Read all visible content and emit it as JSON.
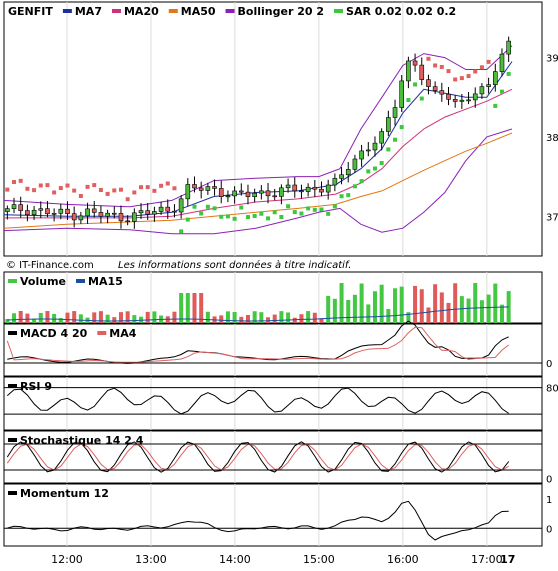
{
  "chart_data": {
    "type": "line",
    "symbol": "GENFIT",
    "watermark": "© IT-Finance.com",
    "disclaimer": "Les informations sont données à titre indicatif.",
    "x_ticks": [
      "12:00",
      "13:00",
      "14:00",
      "15:00",
      "16:00",
      "17:00",
      "17"
    ],
    "x_range": [
      11.25,
      17.3
    ],
    "colors": {
      "up": "#4cbc3c",
      "down": "#e06060",
      "ma7": "#1a2fa0",
      "ma20": "#d0307a",
      "ma50": "#e07818",
      "bollinger": "#8a20b8",
      "sar": "#3cc83c",
      "sar_down": "#e06060",
      "volume_up": "#44c844",
      "volume_down": "#e05a5a",
      "ma15": "#1a4fa0",
      "macd": "#000000",
      "macd_ma": "#e06060",
      "stoch_signal": "#e06060"
    },
    "panels": [
      {
        "id": "price",
        "legend": [
          {
            "label": "GENFIT",
            "color": "#000000"
          },
          {
            "label": "MA7",
            "color": "#1a2fa0"
          },
          {
            "label": "MA20",
            "color": "#d0307a"
          },
          {
            "label": "MA50",
            "color": "#e07818"
          },
          {
            "label": "Bollinger 20 2",
            "color": "#8a20b8"
          },
          {
            "label": "SAR 0.02 0.02 0.2",
            "color": "#3cc83c"
          }
        ],
        "y_ticks": [
          "39",
          "38",
          "37"
        ],
        "y_range": [
          36.5,
          39.7
        ]
      },
      {
        "id": "volume",
        "legend": [
          {
            "label": "Volume",
            "color": "#44c844"
          },
          {
            "label": "MA15",
            "color": "#1a4fa0"
          }
        ],
        "y_ticks": []
      },
      {
        "id": "macd",
        "legend": [
          {
            "label": "MACD 4 20",
            "color": "#000000"
          },
          {
            "label": "MA4",
            "color": "#e06060"
          }
        ],
        "y_ticks": [
          "0"
        ]
      },
      {
        "id": "rsi",
        "legend": [
          {
            "label": "RSI 9",
            "color": "#000000"
          }
        ],
        "y_ticks": [
          "80"
        ]
      },
      {
        "id": "stoch",
        "legend": [
          {
            "label": "Stochastique 14 2 4",
            "color": "#000000"
          }
        ],
        "y_ticks": [
          "0"
        ]
      },
      {
        "id": "momentum",
        "legend": [
          {
            "label": "Momentum 12",
            "color": "#000000"
          }
        ],
        "y_ticks": [
          "1",
          "0"
        ]
      }
    ],
    "series_segments": {
      "price_path": [
        [
          11.25,
          37.06
        ],
        [
          11.5,
          37.1
        ],
        [
          11.75,
          37.05
        ],
        [
          12.0,
          37.02
        ],
        [
          12.25,
          37.05
        ],
        [
          12.5,
          37.0
        ],
        [
          12.75,
          37.0
        ],
        [
          13.0,
          37.05
        ],
        [
          13.25,
          37.1
        ],
        [
          13.35,
          37.2
        ],
        [
          13.45,
          37.35
        ],
        [
          13.75,
          37.35
        ],
        [
          14.0,
          37.25
        ],
        [
          14.25,
          37.3
        ],
        [
          14.5,
          37.3
        ],
        [
          14.75,
          37.35
        ],
        [
          15.0,
          37.35
        ],
        [
          15.2,
          37.4
        ],
        [
          15.35,
          37.65
        ],
        [
          15.5,
          37.8
        ],
        [
          15.75,
          38.0
        ],
        [
          15.9,
          38.4
        ],
        [
          16.0,
          38.8
        ],
        [
          16.1,
          39.0
        ],
        [
          16.2,
          38.8
        ],
        [
          16.35,
          38.5
        ],
        [
          16.5,
          38.6
        ],
        [
          16.65,
          38.4
        ],
        [
          16.8,
          38.5
        ],
        [
          17.0,
          38.6
        ],
        [
          17.1,
          38.9
        ],
        [
          17.2,
          39.1
        ],
        [
          17.3,
          39.2
        ]
      ],
      "ma7": [
        [
          11.25,
          37.02
        ],
        [
          12.0,
          37.0
        ],
        [
          12.75,
          37.0
        ],
        [
          13.25,
          37.05
        ],
        [
          13.75,
          37.25
        ],
        [
          14.25,
          37.3
        ],
        [
          14.75,
          37.32
        ],
        [
          15.2,
          37.4
        ],
        [
          15.5,
          37.6
        ],
        [
          15.75,
          37.85
        ],
        [
          16.0,
          38.3
        ],
        [
          16.25,
          38.6
        ],
        [
          16.5,
          38.55
        ],
        [
          16.75,
          38.5
        ],
        [
          17.0,
          38.5
        ],
        [
          17.2,
          38.8
        ],
        [
          17.3,
          38.95
        ]
      ],
      "ma20": [
        [
          11.25,
          36.98
        ],
        [
          12.0,
          36.98
        ],
        [
          12.75,
          36.98
        ],
        [
          13.25,
          37.0
        ],
        [
          13.75,
          37.1
        ],
        [
          14.25,
          37.18
        ],
        [
          14.75,
          37.22
        ],
        [
          15.2,
          37.28
        ],
        [
          15.5,
          37.42
        ],
        [
          15.75,
          37.6
        ],
        [
          16.0,
          37.88
        ],
        [
          16.25,
          38.1
        ],
        [
          16.5,
          38.25
        ],
        [
          16.75,
          38.35
        ],
        [
          17.0,
          38.45
        ],
        [
          17.3,
          38.6
        ]
      ],
      "ma50": [
        [
          11.25,
          36.85
        ],
        [
          12.0,
          36.9
        ],
        [
          12.75,
          36.93
        ],
        [
          13.25,
          36.95
        ],
        [
          13.75,
          37.0
        ],
        [
          14.25,
          37.05
        ],
        [
          14.75,
          37.1
        ],
        [
          15.2,
          37.15
        ],
        [
          15.5,
          37.25
        ],
        [
          15.75,
          37.32
        ],
        [
          16.0,
          37.45
        ],
        [
          16.25,
          37.58
        ],
        [
          16.5,
          37.7
        ],
        [
          16.75,
          37.82
        ],
        [
          17.0,
          37.92
        ],
        [
          17.3,
          38.05
        ]
      ],
      "boll_upper": [
        [
          11.25,
          37.2
        ],
        [
          12.0,
          37.15
        ],
        [
          12.75,
          37.12
        ],
        [
          13.25,
          37.2
        ],
        [
          13.75,
          37.45
        ],
        [
          14.25,
          37.48
        ],
        [
          14.75,
          37.5
        ],
        [
          15.0,
          37.5
        ],
        [
          15.25,
          37.6
        ],
        [
          15.5,
          38.1
        ],
        [
          15.75,
          38.5
        ],
        [
          16.0,
          38.9
        ],
        [
          16.25,
          39.05
        ],
        [
          16.5,
          39.0
        ],
        [
          16.75,
          38.85
        ],
        [
          17.0,
          38.85
        ],
        [
          17.3,
          39.15
        ]
      ],
      "boll_lower": [
        [
          11.25,
          36.82
        ],
        [
          12.0,
          36.85
        ],
        [
          12.75,
          36.83
        ],
        [
          13.25,
          36.78
        ],
        [
          13.75,
          36.78
        ],
        [
          14.25,
          36.85
        ],
        [
          14.75,
          36.98
        ],
        [
          15.0,
          37.05
        ],
        [
          15.25,
          37.1
        ],
        [
          15.5,
          36.9
        ],
        [
          15.75,
          36.8
        ],
        [
          16.0,
          36.85
        ],
        [
          16.25,
          37.05
        ],
        [
          16.5,
          37.3
        ],
        [
          16.75,
          37.7
        ],
        [
          17.0,
          38.0
        ],
        [
          17.3,
          38.1
        ]
      ]
    }
  }
}
